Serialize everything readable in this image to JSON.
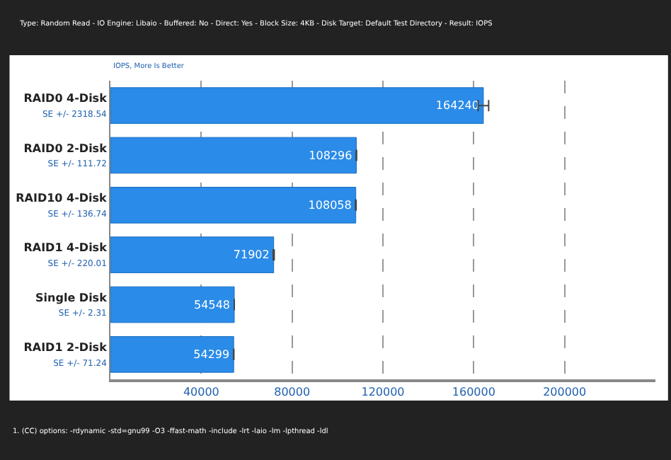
{
  "chart_data": {
    "type": "bar",
    "orientation": "horizontal",
    "subtitle": "Type: Random Read - IO Engine: Libaio - Buffered: No - Direct: Yes - Block Size: 4KB - Disk Target: Default Test Directory - Result: IOPS",
    "categories": [
      "RAID0 4-Disk\nSE +/- 2318.54",
      "RAID0 2-Disk\nSE +/- 111.72",
      "RAID10 4-Disk\nSE +/- 136.74",
      "RAID1 4-Disk\nSE +/- 220.01",
      "Single Disk\nSE +/- 2.31",
      "RAID1 2-Disk\nSE +/- 71.24"
    ],
    "values": [
      164240,
      108296,
      108058,
      71902,
      54548,
      54299
    ],
    "errors": [
      2318.54,
      111.72,
      136.74,
      220.01,
      2.31,
      71.24
    ],
    "color": "#2a8be8",
    "data_labels": true,
    "xlim": [
      0,
      240000
    ],
    "xticks": [
      40000,
      80000,
      120000,
      160000,
      200000
    ],
    "grid": "x",
    "legend": false,
    "annotations": [
      "IOPS, More Is Better",
      "1. (CC) options: -rdynamic -std=gnu99 -O3 -ffast-math -include -lrt -laio -lm -lpthread -ldl"
    ]
  }
}
